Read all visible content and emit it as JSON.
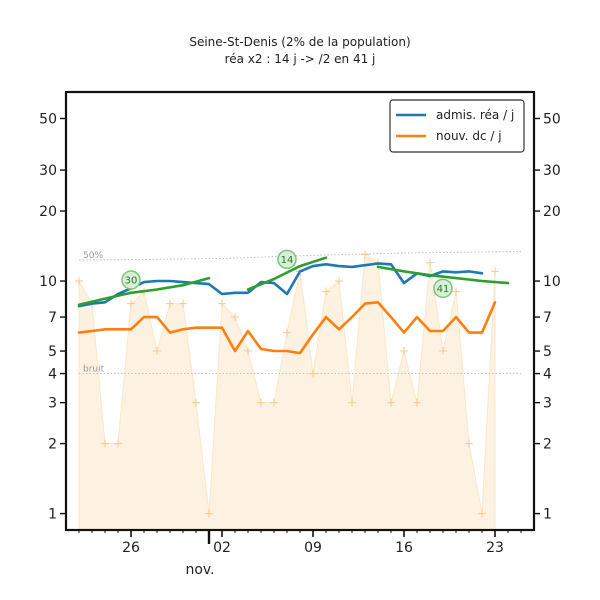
{
  "chart_data": {
    "type": "line",
    "title": "Seine-St-Denis (2% de la population)",
    "subtitle": "réa x2 : 14 j -> /2 en 41 j",
    "yscale": "log",
    "ylim": [
      0.85,
      65
    ],
    "xlim": [
      "2020-10-21",
      "2020-11-26"
    ],
    "y_ticks": [
      1,
      2,
      3,
      4,
      5,
      7,
      10,
      20,
      30,
      50
    ],
    "x_ticks": [
      {
        "date": "2020-10-26",
        "label": "26"
      },
      {
        "date": "2020-11-02",
        "label": "02"
      },
      {
        "date": "2020-11-09",
        "label": "09"
      },
      {
        "date": "2020-11-16",
        "label": "16"
      },
      {
        "date": "2020-11-23",
        "label": "23"
      }
    ],
    "month_label": "nov.",
    "legend": {
      "position": "top-right"
    },
    "reference_lines": [
      {
        "label": "50%",
        "color": "#b0b0b0",
        "points": [
          [
            "2020-10-22",
            12.3
          ],
          [
            "2020-11-02",
            12.5
          ],
          [
            "2020-11-09",
            12.9
          ],
          [
            "2020-11-16",
            13.2
          ],
          [
            "2020-11-25",
            13.4
          ]
        ]
      },
      {
        "label": "bruit",
        "color": "#b0b0b0",
        "points": [
          [
            "2020-10-22",
            4.0
          ],
          [
            "2020-11-25",
            4.0
          ]
        ]
      }
    ],
    "series": [
      {
        "name": "admis. réa / j",
        "color": "#1f77b4",
        "points": [
          [
            "2020-10-22",
            7.8
          ],
          [
            "2020-10-23",
            8.0
          ],
          [
            "2020-10-24",
            8.1
          ],
          [
            "2020-10-25",
            8.8
          ],
          [
            "2020-10-26",
            9.3
          ],
          [
            "2020-10-27",
            9.9
          ],
          [
            "2020-10-28",
            10.0
          ],
          [
            "2020-10-29",
            10.0
          ],
          [
            "2020-10-30",
            9.9
          ],
          [
            "2020-10-31",
            9.8
          ],
          [
            "2020-11-01",
            9.7
          ],
          [
            "2020-11-02",
            8.8
          ],
          [
            "2020-11-03",
            8.9
          ],
          [
            "2020-11-04",
            8.9
          ],
          [
            "2020-11-05",
            9.9
          ],
          [
            "2020-11-06",
            9.8
          ],
          [
            "2020-11-07",
            8.8
          ],
          [
            "2020-11-08",
            11.0
          ],
          [
            "2020-11-09",
            11.6
          ],
          [
            "2020-11-10",
            11.8
          ],
          [
            "2020-11-11",
            11.6
          ],
          [
            "2020-11-12",
            11.5
          ],
          [
            "2020-11-13",
            11.7
          ],
          [
            "2020-11-14",
            11.9
          ],
          [
            "2020-11-15",
            11.8
          ],
          [
            "2020-11-16",
            9.8
          ],
          [
            "2020-11-17",
            10.8
          ],
          [
            "2020-11-18",
            10.5
          ],
          [
            "2020-11-19",
            11.0
          ],
          [
            "2020-11-20",
            10.9
          ],
          [
            "2020-11-21",
            11.0
          ],
          [
            "2020-11-22",
            10.8
          ]
        ]
      },
      {
        "name": "nouv. dc / j",
        "color": "#ff7f0e",
        "points": [
          [
            "2020-10-22",
            6.0
          ],
          [
            "2020-10-23",
            6.1
          ],
          [
            "2020-10-24",
            6.2
          ],
          [
            "2020-10-25",
            6.2
          ],
          [
            "2020-10-26",
            6.2
          ],
          [
            "2020-10-27",
            7.0
          ],
          [
            "2020-10-28",
            7.0
          ],
          [
            "2020-10-29",
            6.0
          ],
          [
            "2020-10-30",
            6.2
          ],
          [
            "2020-10-31",
            6.3
          ],
          [
            "2020-11-01",
            6.3
          ],
          [
            "2020-11-02",
            6.3
          ],
          [
            "2020-11-03",
            5.0
          ],
          [
            "2020-11-04",
            6.1
          ],
          [
            "2020-11-05",
            5.1
          ],
          [
            "2020-11-06",
            5.0
          ],
          [
            "2020-11-07",
            5.0
          ],
          [
            "2020-11-08",
            4.9
          ],
          [
            "2020-11-09",
            5.9
          ],
          [
            "2020-11-10",
            7.0
          ],
          [
            "2020-11-11",
            6.2
          ],
          [
            "2020-11-12",
            7.0
          ],
          [
            "2020-11-13",
            8.0
          ],
          [
            "2020-11-14",
            8.1
          ],
          [
            "2020-11-15",
            7.0
          ],
          [
            "2020-11-16",
            6.0
          ],
          [
            "2020-11-17",
            7.0
          ],
          [
            "2020-11-18",
            6.1
          ],
          [
            "2020-11-19",
            6.1
          ],
          [
            "2020-11-20",
            7.0
          ],
          [
            "2020-11-21",
            6.0
          ],
          [
            "2020-11-22",
            6.0
          ],
          [
            "2020-11-23",
            8.1
          ]
        ]
      },
      {
        "color": "#2ca02c",
        "points": [
          [
            "2020-10-22",
            7.9
          ],
          [
            "2020-10-24",
            8.4
          ],
          [
            "2020-10-26",
            8.9
          ],
          [
            "2020-10-28",
            9.2
          ],
          [
            "2020-10-30",
            9.6
          ],
          [
            "2020-11-01",
            10.3
          ]
        ]
      },
      {
        "color": "#2ca02c",
        "points": [
          [
            "2020-11-04",
            9.2
          ],
          [
            "2020-11-06",
            10.2
          ],
          [
            "2020-11-08",
            11.6
          ],
          [
            "2020-11-10",
            12.6
          ]
        ]
      },
      {
        "color": "#2ca02c",
        "points": [
          [
            "2020-11-14",
            11.5
          ],
          [
            "2020-11-16",
            11.0
          ],
          [
            "2020-11-18",
            10.6
          ],
          [
            "2020-11-20",
            10.3
          ],
          [
            "2020-11-22",
            10.0
          ],
          [
            "2020-11-24",
            9.8
          ]
        ]
      }
    ],
    "annotations": [
      {
        "text": "30",
        "date": "2020-10-26",
        "y": 10.1
      },
      {
        "text": "14",
        "date": "2020-11-07",
        "y": 12.4
      },
      {
        "text": "41",
        "date": "2020-11-19",
        "y": 9.3
      }
    ],
    "daily_points": [
      {
        "date": "2020-10-22",
        "value": 10
      },
      {
        "date": "2020-10-23",
        "value": 8
      },
      {
        "date": "2020-10-24",
        "value": 2
      },
      {
        "date": "2020-10-25",
        "value": 2
      },
      {
        "date": "2020-10-26",
        "value": 8
      },
      {
        "date": "2020-10-27",
        "value": 9
      },
      {
        "date": "2020-10-28",
        "value": 5
      },
      {
        "date": "2020-10-29",
        "value": 8
      },
      {
        "date": "2020-10-30",
        "value": 8
      },
      {
        "date": "2020-10-31",
        "value": 3
      },
      {
        "date": "2020-11-01",
        "value": 1
      },
      {
        "date": "2020-11-02",
        "value": 8
      },
      {
        "date": "2020-11-03",
        "value": 7
      },
      {
        "date": "2020-11-04",
        "value": 5
      },
      {
        "date": "2020-11-05",
        "value": 3
      },
      {
        "date": "2020-11-06",
        "value": 3
      },
      {
        "date": "2020-11-07",
        "value": 6
      },
      {
        "date": "2020-11-08",
        "value": 11
      },
      {
        "date": "2020-11-09",
        "value": 4
      },
      {
        "date": "2020-11-10",
        "value": 9
      },
      {
        "date": "2020-11-11",
        "value": 10
      },
      {
        "date": "2020-11-12",
        "value": 3
      },
      {
        "date": "2020-11-13",
        "value": 13
      },
      {
        "date": "2020-11-14",
        "value": 12
      },
      {
        "date": "2020-11-15",
        "value": 3
      },
      {
        "date": "2020-11-16",
        "value": 5
      },
      {
        "date": "2020-11-17",
        "value": 3
      },
      {
        "date": "2020-11-18",
        "value": 12
      },
      {
        "date": "2020-11-19",
        "value": 5
      },
      {
        "date": "2020-11-20",
        "value": 9
      },
      {
        "date": "2020-11-21",
        "value": 2
      },
      {
        "date": "2020-11-22",
        "value": 1
      },
      {
        "date": "2020-11-23",
        "value": 11
      }
    ]
  }
}
